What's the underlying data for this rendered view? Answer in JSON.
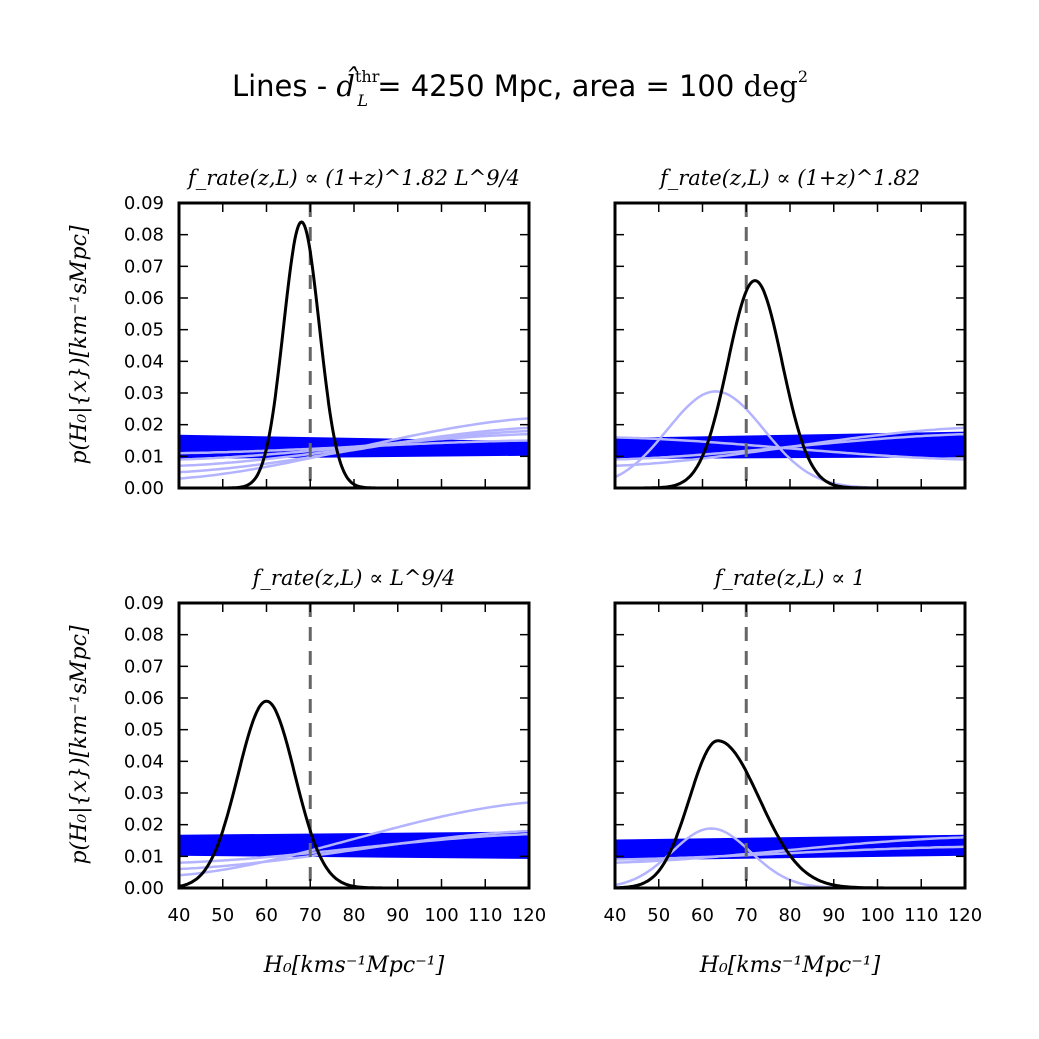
{
  "figure": {
    "title_prefix": "Lines - ",
    "title_symbol": "d̂",
    "title_symbol_sup": "thr",
    "title_symbol_sub": "L",
    "title_mid": " = 4250 Mpc, area = 100 ",
    "title_unit": "deg",
    "title_unit_sup": "2"
  },
  "labels": {
    "ylabel": "p(H₀|{x})[km⁻¹sMpc]",
    "xlabel": "H₀[kms⁻¹Mpc⁻¹]"
  },
  "colors": {
    "posterior": "#000000",
    "truth": "#666666",
    "strong_lines": "#0000ff",
    "faint_lines": "#b3b3ff"
  },
  "chart_data": [
    {
      "type": "line",
      "title": "f_rate(z,L) ∝ (1+z)^1.82 L^9/4",
      "xlim": [
        40,
        120
      ],
      "ylim": [
        0,
        0.09
      ],
      "xticks": [
        "40",
        "50",
        "60",
        "70",
        "80",
        "90",
        "100",
        "110",
        "120"
      ],
      "yticks": [
        "0.00",
        "0.01",
        "0.02",
        "0.03",
        "0.04",
        "0.05",
        "0.06",
        "0.07",
        "0.08",
        "0.09"
      ],
      "truth_x": 70,
      "posterior": {
        "mu": 68,
        "sigma": 4.1,
        "peak": 0.084
      },
      "band": {
        "start": [
          0.0095,
          0.0165
        ],
        "end": [
          0.0105,
          0.0145
        ]
      },
      "faint_lines": [
        {
          "start": 0.003,
          "end": 0.022
        },
        {
          "start": 0.005,
          "end": 0.019
        },
        {
          "start": 0.007,
          "end": 0.018
        },
        {
          "start": 0.009,
          "end": 0.017
        },
        {
          "start": 0.011,
          "end": 0.015
        }
      ]
    },
    {
      "type": "line",
      "title": "f_rate(z,L) ∝ (1+z)^1.82",
      "xlim": [
        40,
        120
      ],
      "ylim": [
        0,
        0.09
      ],
      "xticks": [
        "40",
        "50",
        "60",
        "70",
        "80",
        "90",
        "100",
        "110",
        "120"
      ],
      "yticks": [
        "0.00",
        "0.01",
        "0.02",
        "0.03",
        "0.04",
        "0.05",
        "0.06",
        "0.07",
        "0.08",
        "0.09"
      ],
      "truth_x": 70,
      "posterior": {
        "mu": 72,
        "sigma": 6.2,
        "peak": 0.0655
      },
      "band": {
        "start": [
          0.0095,
          0.0155
        ],
        "end": [
          0.01,
          0.0175
        ]
      },
      "faint_lines": [
        {
          "start": 0.007,
          "end": 0.019
        },
        {
          "start": 0.009,
          "end": 0.017
        },
        {
          "start": 0.016,
          "end": 0.009
        }
      ],
      "faint_bump": {
        "mu": 63,
        "sigma": 11,
        "peak": 0.0305
      }
    },
    {
      "type": "line",
      "title": "f_rate(z,L) ∝ L^9/4",
      "xlim": [
        40,
        120
      ],
      "ylim": [
        0,
        0.09
      ],
      "xticks": [
        "40",
        "50",
        "60",
        "70",
        "80",
        "90",
        "100",
        "110",
        "120"
      ],
      "yticks": [
        "0.00",
        "0.01",
        "0.02",
        "0.03",
        "0.04",
        "0.05",
        "0.06",
        "0.07",
        "0.08",
        "0.09"
      ],
      "truth_x": 70,
      "posterior": {
        "mu": 60,
        "sigma": 6.5,
        "peak": 0.059
      },
      "band": {
        "start": [
          0.0105,
          0.0165
        ],
        "end": [
          0.0095,
          0.0175
        ]
      },
      "faint_lines": [
        {
          "start": 0.004,
          "end": 0.027
        },
        {
          "start": 0.006,
          "end": 0.018
        },
        {
          "start": 0.008,
          "end": 0.017
        }
      ]
    },
    {
      "type": "line",
      "title": "f_rate(z,L) ∝ 1",
      "xlim": [
        40,
        120
      ],
      "ylim": [
        0,
        0.09
      ],
      "xticks": [
        "40",
        "50",
        "60",
        "70",
        "80",
        "90",
        "100",
        "110",
        "120"
      ],
      "yticks": [
        "0.00",
        "0.01",
        "0.02",
        "0.03",
        "0.04",
        "0.05",
        "0.06",
        "0.07",
        "0.08",
        "0.09"
      ],
      "truth_x": 70,
      "posterior": {
        "mu": 63.5,
        "sigma": 6.5,
        "sigma_right": 9.5,
        "peak": 0.0465
      },
      "band": {
        "start": [
          0.009,
          0.015
        ],
        "end": [
          0.0105,
          0.0165
        ]
      },
      "faint_lines": [
        {
          "start": 0.008,
          "end": 0.016
        },
        {
          "start": 0.009,
          "end": 0.013
        }
      ],
      "faint_bump": {
        "mu": 62,
        "sigma": 9,
        "peak": 0.0188
      }
    }
  ]
}
